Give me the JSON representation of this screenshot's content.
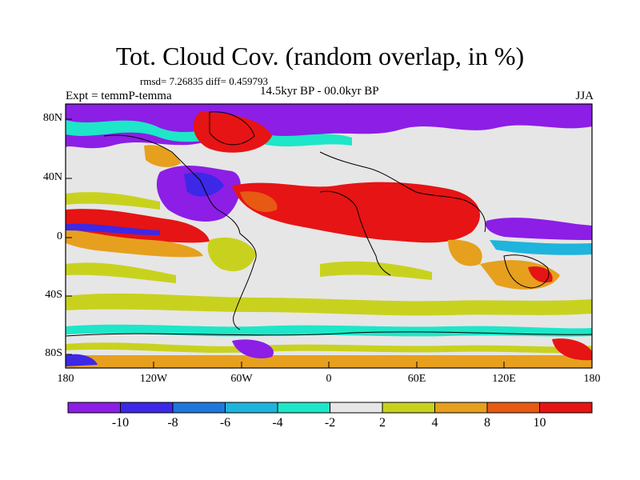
{
  "title": "Tot. Cloud Cov. (random overlap, in %)",
  "stats": "rmsd= 7.26835 diff= 0.459793",
  "experiment": "Expt = temmP-temma",
  "period": "14.5kyr BP - 00.0kyr BP",
  "season": "JJA",
  "lat_labels": [
    "80N",
    "40N",
    "0",
    "40S",
    "80S"
  ],
  "lon_labels": [
    "180",
    "120W",
    "60W",
    "0",
    "60E",
    "120E",
    "180"
  ],
  "colorbar": {
    "labels": [
      "-10",
      "-8",
      "-6",
      "-4",
      "-2",
      "2",
      "4",
      "8",
      "10"
    ],
    "colors": [
      "#8c1ee6",
      "#3c28e6",
      "#1e78dc",
      "#1eb4dc",
      "#1ee6c8",
      "#e6e6e6",
      "#c8d21e",
      "#e6a01e",
      "#e65a14",
      "#e61414"
    ]
  }
}
